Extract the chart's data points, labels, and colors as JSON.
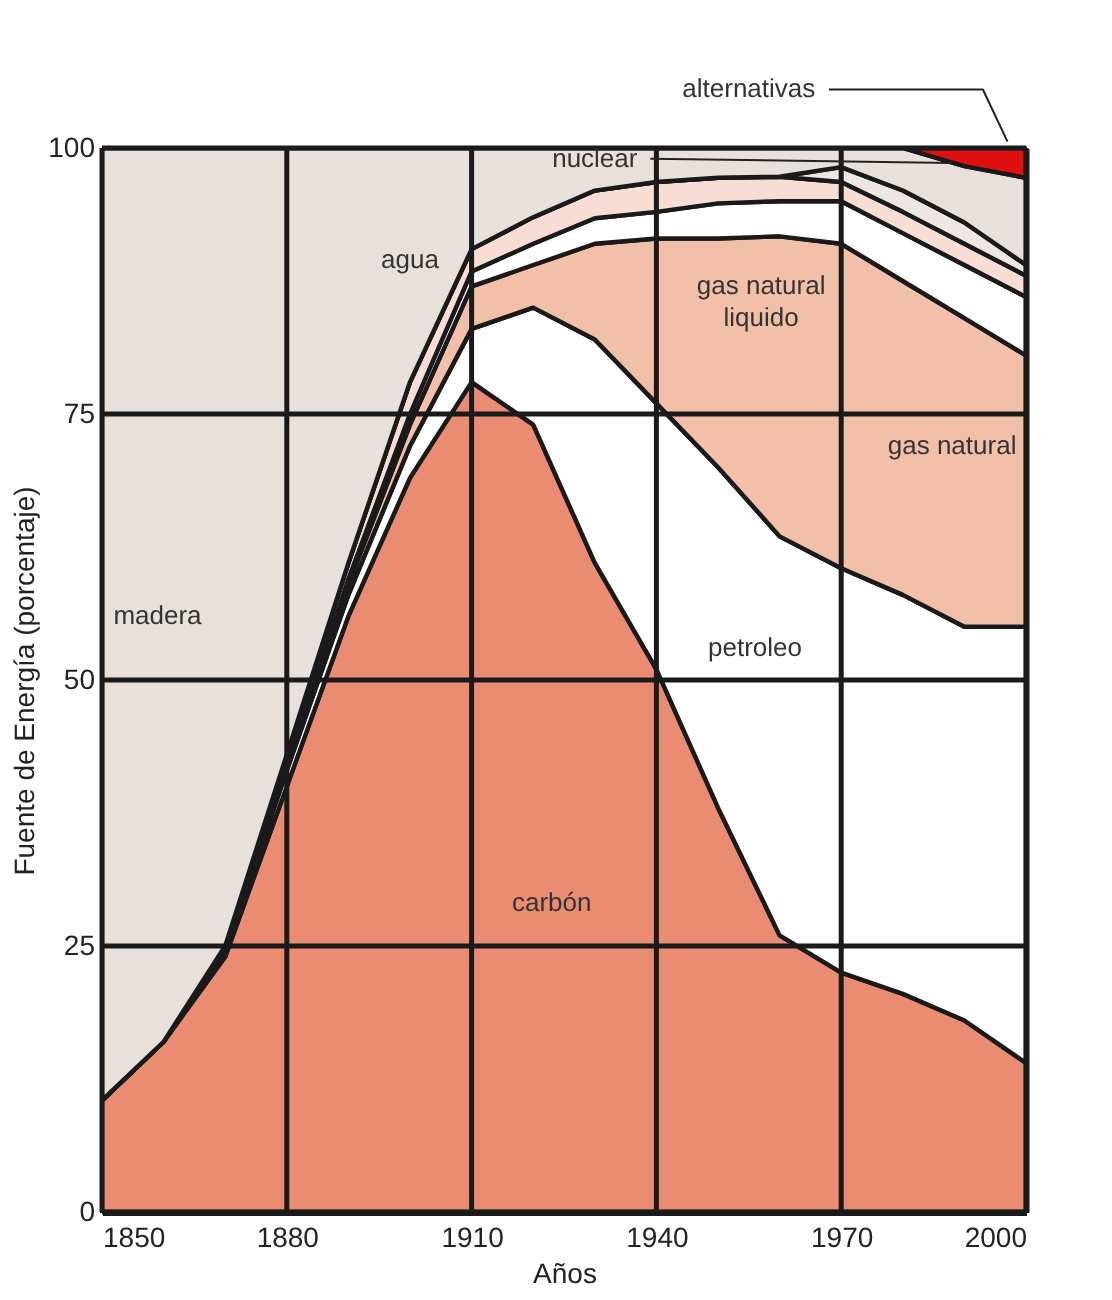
{
  "chart_data": {
    "type": "area",
    "stacked": true,
    "xlabel": "Años",
    "ylabel": "Fuente de Energía (porcentaje)",
    "x": [
      1850,
      1860,
      1870,
      1880,
      1890,
      1900,
      1910,
      1920,
      1930,
      1940,
      1950,
      1960,
      1970,
      1980,
      1990,
      2000
    ],
    "xlim": [
      1850,
      2000
    ],
    "xticks": [
      1850,
      1880,
      1910,
      1940,
      1970,
      2000
    ],
    "ylim": [
      0,
      100
    ],
    "yticks": [
      0,
      25,
      50,
      75,
      100
    ],
    "grid": true,
    "series": [
      {
        "name": "carbón",
        "color": "#e98c72",
        "values": [
          10.5,
          16,
          24,
          40,
          56,
          69,
          78,
          74,
          61,
          51,
          38,
          26,
          22.5,
          20.5,
          18,
          14
        ]
      },
      {
        "name": "petroleo",
        "color": "#ffffff",
        "values": [
          0,
          0,
          0.5,
          1.5,
          2,
          3,
          5,
          11,
          21,
          25,
          32,
          37.5,
          38,
          37.5,
          37,
          41
        ]
      },
      {
        "name": "gas natural",
        "color": "#f2bfa9",
        "values": [
          0,
          0,
          0,
          0.5,
          1,
          2,
          4,
          4,
          9,
          15.5,
          21.5,
          28.2,
          30.5,
          29.5,
          29,
          25.5
        ]
      },
      {
        "name": "gas natural liquido",
        "color": "#ffffff",
        "values": [
          0,
          0,
          0,
          0,
          0.5,
          1,
          1.4,
          2,
          2.4,
          2.5,
          3.3,
          3.3,
          4,
          4.5,
          5,
          5.5
        ]
      },
      {
        "name": "agua",
        "color": "#f7ddd3",
        "values": [
          0,
          0,
          0.5,
          1,
          1.5,
          3,
          2.1,
          2.5,
          2.6,
          2.8,
          2.4,
          2.3,
          1.8,
          2,
          2,
          2
        ]
      },
      {
        "name": "nuclear",
        "color": "#ede6e2",
        "values": [
          0,
          0,
          0,
          0,
          0,
          0,
          0,
          0,
          0,
          0,
          0,
          0,
          1.4,
          2,
          2,
          1
        ]
      },
      {
        "name": "madera",
        "color": "#e8e0da",
        "values": [
          89.5,
          84,
          75,
          57,
          39,
          22,
          9.5,
          6.5,
          4,
          3.2,
          2.8,
          2.7,
          1.8,
          4,
          5.3,
          8.2
        ]
      },
      {
        "name": "alternativas",
        "color": "#e01010",
        "values": [
          0,
          0,
          0,
          0,
          0,
          0,
          0,
          0,
          0,
          0,
          0,
          0,
          0,
          0,
          1.7,
          2.8
        ]
      }
    ]
  }
}
